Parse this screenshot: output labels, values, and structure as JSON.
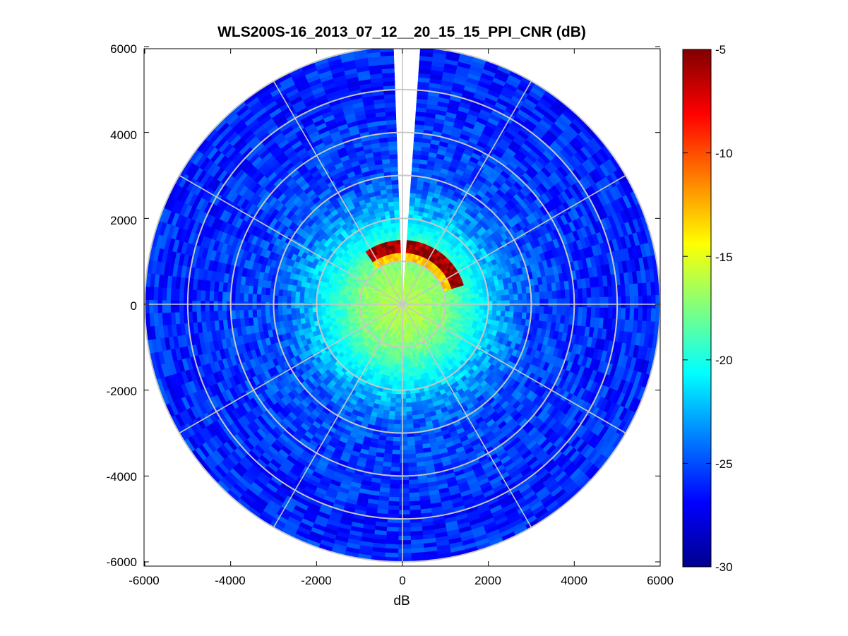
{
  "chart_data": {
    "type": "heatmap",
    "subtype": "polar-ppi",
    "title": "WLS200S-16_2013_07_12__20_15_15_PPI_CNR (dB)",
    "xlabel": "dB",
    "ylabel": "",
    "xlim": [
      -6000,
      6000
    ],
    "ylim": [
      -6000,
      6000
    ],
    "xticks": [
      -6000,
      -4000,
      -2000,
      0,
      2000,
      4000,
      6000
    ],
    "yticks": [
      6000,
      4000,
      2000,
      0,
      -2000,
      -4000,
      -6000
    ],
    "xtick_labels": [
      "-6000",
      "-4000",
      "-2000",
      "0",
      "2000",
      "4000",
      "6000"
    ],
    "ytick_labels": [
      "6000",
      "4000",
      "2000",
      "0",
      "-2000",
      "-4000",
      "-6000"
    ],
    "max_range": 6000,
    "range_rings": [
      1000,
      2000,
      3000,
      4000,
      5000,
      6000
    ],
    "spoke_angles_deg": [
      0,
      30,
      60,
      90,
      120,
      150,
      180,
      210,
      240,
      270,
      300,
      330
    ],
    "missing_sector_azimuth_deg": [
      -4,
      4
    ],
    "grid": true,
    "colorbar": {
      "position": "right",
      "colormap": "jet",
      "clim": [
        -30,
        -5
      ],
      "ticks": [
        -5,
        -10,
        -15,
        -20,
        -25,
        -30
      ],
      "tick_labels": [
        "-5",
        "-10",
        "-15",
        "-20",
        "-25",
        "-30"
      ]
    },
    "cnr_profile": {
      "description": "approximate azimuthally averaged CNR (dB) vs range (m)",
      "range_m": [
        0,
        500,
        1000,
        1500,
        2000,
        2500,
        3000,
        4000,
        5000,
        6000
      ],
      "cnr_db": [
        -16,
        -16.5,
        -17.5,
        -19.5,
        -21.5,
        -23.5,
        -25,
        -25.5,
        -26,
        -26
      ]
    },
    "hard_target_arc": {
      "description": "strong return arc north/north-east of origin",
      "azimuth_deg": [
        -35,
        70
      ],
      "range_m": [
        1200,
        1500
      ],
      "cnr_db": -6
    }
  }
}
